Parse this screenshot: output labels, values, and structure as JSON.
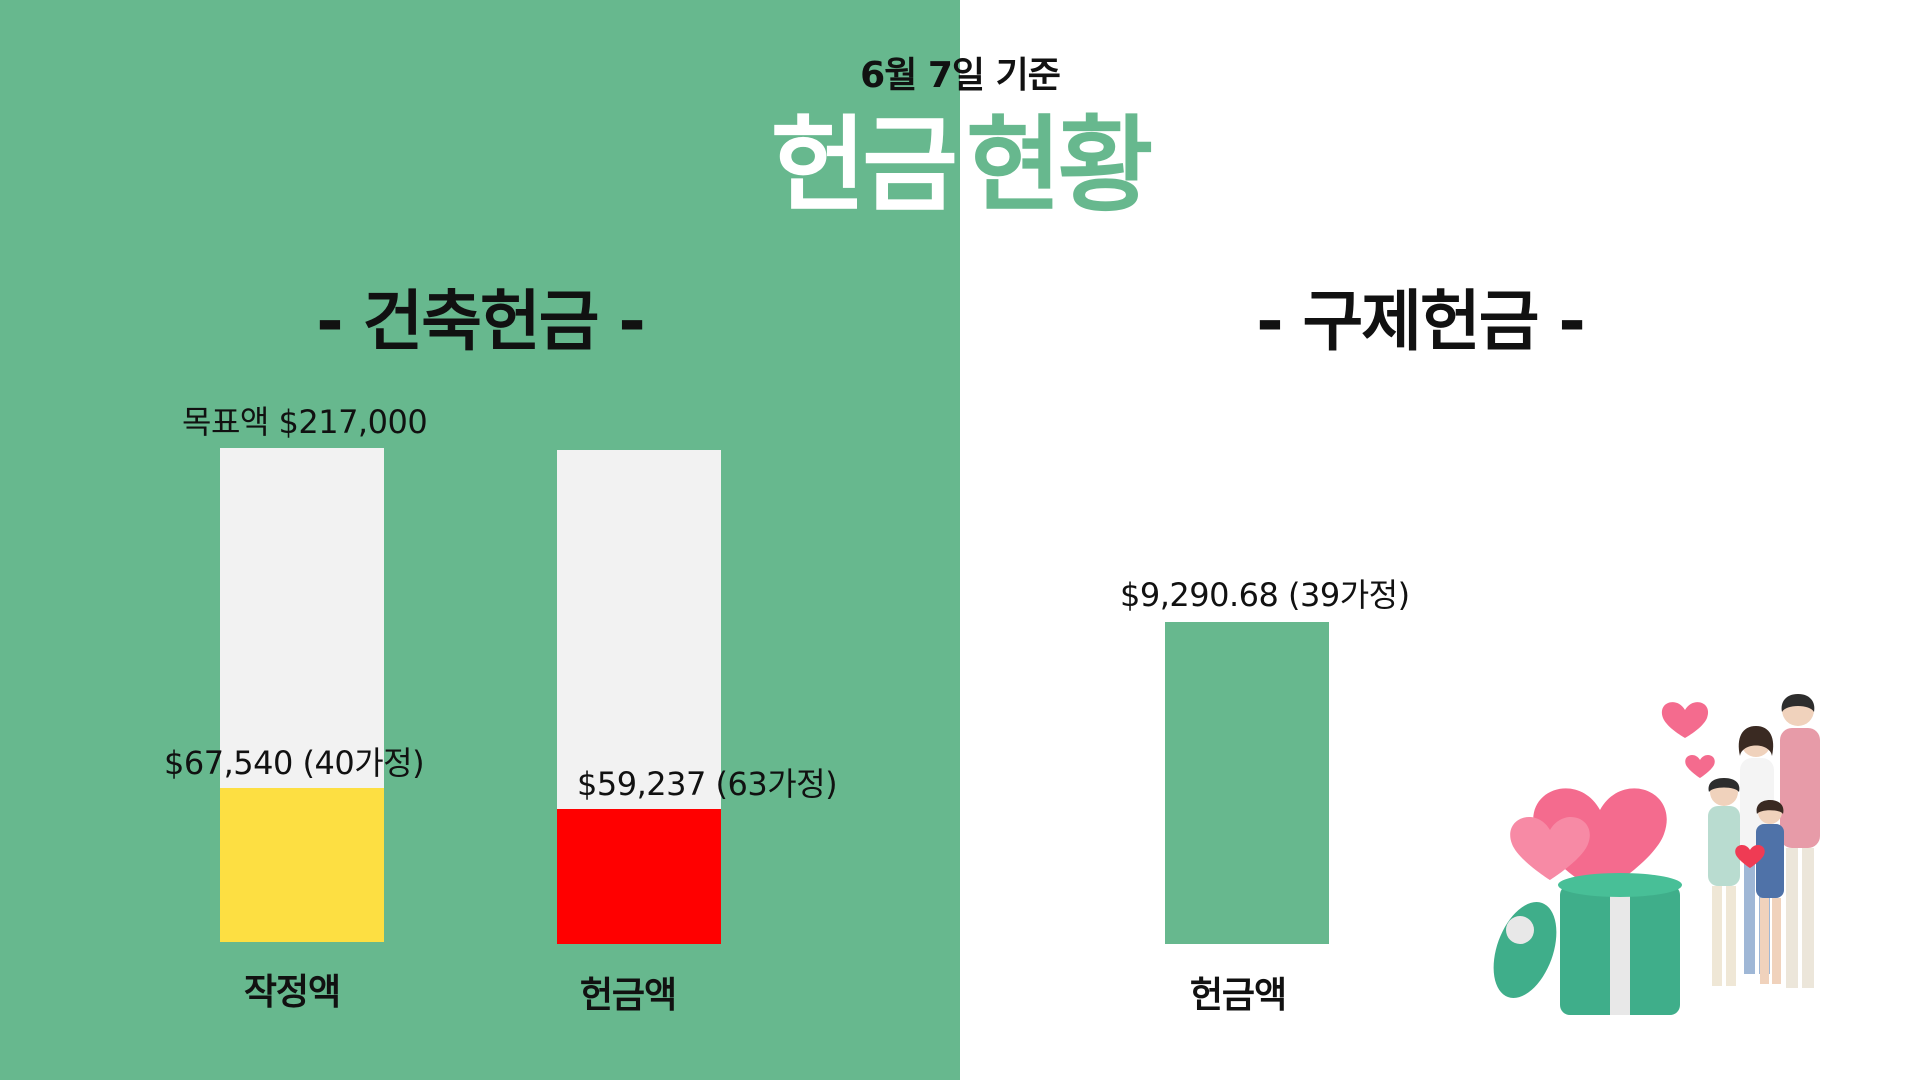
{
  "header": {
    "as_of": "6월 7일 기준",
    "title_left": "헌금",
    "title_right": "현황"
  },
  "sections": {
    "left_title": "- 건축헌금 -",
    "right_title": "- 구제헌금 -"
  },
  "chart_data": [
    {
      "type": "bar",
      "title": "- 건축헌금 -",
      "target_label": "목표액 $217,000",
      "ylim": [
        0,
        217000
      ],
      "categories": [
        "작정액",
        "헌금액"
      ],
      "values": [
        67540,
        59237
      ],
      "data_labels": [
        "$67,540 (40가정)",
        "$59,237 (63가정)"
      ],
      "colors": [
        "#fddf42",
        "#ff0000"
      ],
      "track_color": "#f2f2f2"
    },
    {
      "type": "bar",
      "title": "- 구제헌금 -",
      "categories": [
        "헌금액"
      ],
      "values": [
        9290.68
      ],
      "data_labels": [
        "$9,290.68 (39가정)"
      ],
      "colors": [
        "#67b88e"
      ]
    }
  ],
  "illustration": {
    "icon": "family-gift-hearts-illustration",
    "colors": {
      "gift": "#3fae8a",
      "heart": "#f46b8e",
      "ribbon": "#e8e8e8"
    }
  },
  "theme": {
    "accent": "#67b88e",
    "title_white": "#ffffff"
  }
}
